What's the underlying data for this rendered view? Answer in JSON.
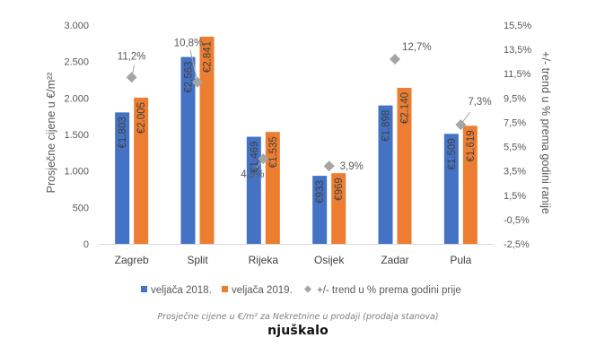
{
  "chart_data": {
    "type": "bar",
    "categories": [
      "Zagreb",
      "Split",
      "Rijeka",
      "Osijek",
      "Zadar",
      "Pula"
    ],
    "series": [
      {
        "name": "veljača 2018.",
        "kind": "bar",
        "axis": "left",
        "color": "#4472C4",
        "values": [
          1803,
          2563,
          1469,
          933,
          1898,
          1509
        ],
        "labels": [
          "€1.803",
          "€2.563",
          "€1.469",
          "€933",
          "€1.898",
          "€1.509"
        ]
      },
      {
        "name": "veljača 2019.",
        "kind": "bar",
        "axis": "left",
        "color": "#ED7D31",
        "values": [
          2005,
          2841,
          1535,
          969,
          2140,
          1619
        ],
        "labels": [
          "€2.005",
          "€2.841",
          "€1.535",
          "€969",
          "€2.140",
          "€1.619"
        ]
      },
      {
        "name": "+/- trend u % prema godini prije",
        "kind": "scatter",
        "axis": "right",
        "color": "#A5A5A5",
        "values": [
          11.2,
          10.8,
          4.5,
          3.9,
          12.7,
          7.3
        ],
        "labels": [
          "11,2%",
          "10,8%",
          "4,5%",
          "3,9%",
          "12,7%",
          "7,3%"
        ]
      }
    ],
    "ylabel": "Prosječne cijene u €/m²²",
    "y2label": "+/- trend u % prema godini ranije",
    "ylim": [
      0,
      3000
    ],
    "y2lim": [
      -2.5,
      15.5
    ],
    "yticks": [
      0,
      500,
      1000,
      1500,
      2000,
      2500,
      3000
    ],
    "ytick_labels": [
      "0",
      "500",
      "1.000",
      "1.500",
      "2.000",
      "2.500",
      "3.000"
    ],
    "y2ticks": [
      -2.5,
      -0.5,
      1.5,
      3.5,
      5.5,
      7.5,
      9.5,
      11.5,
      13.5,
      15.5
    ],
    "y2tick_labels": [
      "-2,5%",
      "-0,5%",
      "1,5%",
      "3,5%",
      "5,5%",
      "7,5%",
      "9,5%",
      "11,5%",
      "13,5%",
      "15,5%"
    ],
    "grid": false,
    "legend": "bottom"
  },
  "caption": "Prosječne cijene u €/m² za Nekretnine u prodaji (prodaja stanova)",
  "logo_text": "njuškalo"
}
